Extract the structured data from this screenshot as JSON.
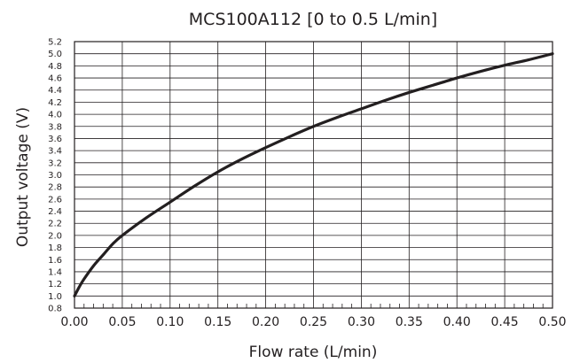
{
  "chart_data": {
    "type": "line",
    "title": "MCS100A112 [0 to 0.5 L/min]",
    "xlabel": "Flow rate (L/min)",
    "ylabel": "Output voltage (V)",
    "xlim": [
      0,
      0.5
    ],
    "ylim": [
      0.8,
      5.2
    ],
    "grid": true,
    "line_color": "#231f20",
    "x_ticks": [
      "0.00",
      "0.05",
      "0.10",
      "0.15",
      "0.20",
      "0.25",
      "0.30",
      "0.35",
      "0.40",
      "0.45",
      "0.50"
    ],
    "y_ticks": [
      "0.8",
      "1.0",
      "1.2",
      "1.4",
      "1.6",
      "1.8",
      "2.0",
      "2.2",
      "2.4",
      "2.6",
      "2.8",
      "3.0",
      "3.2",
      "3.4",
      "3.6",
      "3.8",
      "4.0",
      "4.2",
      "4.4",
      "4.6",
      "4.8",
      "5.0",
      "5.2"
    ],
    "series": [
      {
        "x": [
          0.0,
          0.005,
          0.01,
          0.02,
          0.03,
          0.04,
          0.05,
          0.075,
          0.1,
          0.125,
          0.15,
          0.175,
          0.2,
          0.225,
          0.25,
          0.275,
          0.3,
          0.325,
          0.35,
          0.375,
          0.4,
          0.425,
          0.45,
          0.475,
          0.5
        ],
        "y": [
          1.0,
          1.15,
          1.28,
          1.5,
          1.68,
          1.86,
          2.0,
          2.29,
          2.55,
          2.81,
          3.05,
          3.26,
          3.45,
          3.63,
          3.8,
          3.95,
          4.09,
          4.23,
          4.36,
          4.48,
          4.6,
          4.71,
          4.81,
          4.9,
          5.0
        ]
      }
    ]
  }
}
